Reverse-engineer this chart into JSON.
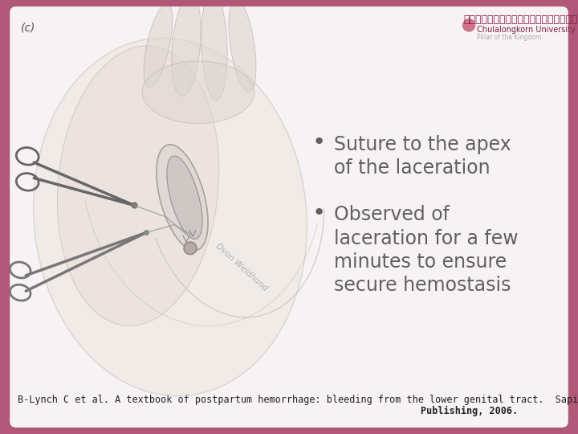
{
  "bg_color": "#b05878",
  "slide_bg": "#f7f3f4",
  "label_c": "(c)",
  "label_c_color": "#555555",
  "label_c_fontsize": 10,
  "bullet1_line1": "Suture to the apex",
  "bullet1_line2": "of the laceration",
  "bullet2_line1": "Observed of",
  "bullet2_line2": "laceration for a few",
  "bullet2_line3": "minutes to ensure",
  "bullet2_line4": "secure hemostasis",
  "bullet_color": "#606060",
  "bullet_fontsize": 17,
  "footer_line1": "B-Lynch C et al. A textbook of postpartum hemorrhage: bleeding from the lower genital tract.  Sapiens",
  "footer_line2": "Publishing, 2006.",
  "footer_color": "#222222",
  "footer_fontsize": 8.5,
  "footer_bg": "#f7f3f4",
  "uni_name_thai": "จุฬาลงกรณ์มหาวิทยาลัย",
  "uni_name_eng": "Chulalongkorn University",
  "uni_tagline": "Pillar of the Kingdom",
  "uni_color_thai": "#8b1a4a",
  "uni_color_eng": "#7a2040",
  "uni_color_tagline": "#aaaaaa",
  "border_thickness": 12
}
